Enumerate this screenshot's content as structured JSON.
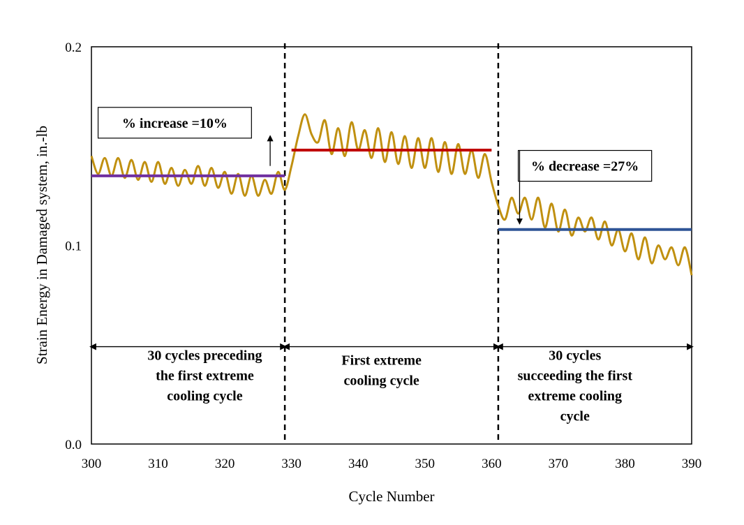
{
  "chart_data": {
    "type": "line",
    "title": "",
    "xlabel": "Cycle Number",
    "ylabel": "Strain Energy in Damaged system, in.-lb",
    "xlim": [
      300,
      390
    ],
    "ylim": [
      0.0,
      0.2
    ],
    "xticks": [
      300,
      310,
      320,
      330,
      340,
      350,
      360,
      370,
      380,
      390
    ],
    "yticks": [
      {
        "value": 0.0,
        "label": "0.0"
      },
      {
        "value": 0.1,
        "label": "0.1"
      },
      {
        "value": 0.2,
        "label": "0.2"
      }
    ],
    "grid": false,
    "colors": {
      "series": "#c09010",
      "mean_before": "#7030a0",
      "mean_extreme": "#c00000",
      "mean_after": "#2e5496",
      "axis": "#000000"
    },
    "series": [
      {
        "x": [
          300,
          301,
          302,
          303,
          304,
          305,
          306,
          307,
          308,
          309,
          310,
          311,
          312,
          313,
          314,
          315,
          316,
          317,
          318,
          319,
          320,
          321,
          322,
          323,
          324,
          325,
          326,
          327,
          328,
          329,
          330,
          331,
          332,
          333,
          334,
          335,
          336,
          337,
          338,
          339,
          340,
          341,
          342,
          343,
          344,
          345,
          346,
          347,
          348,
          349,
          350,
          351,
          352,
          353,
          354,
          355,
          356,
          357,
          358,
          359,
          360,
          361,
          362,
          363,
          364,
          365,
          366,
          367,
          368,
          369,
          370,
          371,
          372,
          373,
          374,
          375,
          376,
          377,
          378,
          379,
          380,
          381,
          382,
          383,
          384,
          385,
          386,
          387,
          388,
          389,
          390
        ],
        "y": [
          0.145,
          0.136,
          0.144,
          0.135,
          0.144,
          0.134,
          0.143,
          0.133,
          0.142,
          0.132,
          0.142,
          0.131,
          0.139,
          0.13,
          0.138,
          0.131,
          0.14,
          0.13,
          0.139,
          0.129,
          0.137,
          0.126,
          0.136,
          0.125,
          0.135,
          0.125,
          0.133,
          0.126,
          0.137,
          0.128,
          0.14,
          0.155,
          0.166,
          0.156,
          0.152,
          0.163,
          0.146,
          0.159,
          0.145,
          0.162,
          0.148,
          0.158,
          0.144,
          0.159,
          0.142,
          0.157,
          0.141,
          0.155,
          0.139,
          0.154,
          0.139,
          0.154,
          0.137,
          0.152,
          0.136,
          0.151,
          0.136,
          0.148,
          0.134,
          0.146,
          0.132,
          0.12,
          0.113,
          0.124,
          0.116,
          0.124,
          0.113,
          0.124,
          0.109,
          0.121,
          0.107,
          0.118,
          0.105,
          0.114,
          0.107,
          0.114,
          0.103,
          0.112,
          0.1,
          0.108,
          0.097,
          0.106,
          0.093,
          0.104,
          0.091,
          0.1,
          0.093,
          0.099,
          0.09,
          0.099,
          0.085
        ]
      }
    ],
    "mean_lines": [
      {
        "x": [
          300,
          329
        ],
        "y": 0.135
      },
      {
        "x": [
          330,
          360
        ],
        "y": 0.148
      },
      {
        "x": [
          361,
          390
        ],
        "y": 0.108
      }
    ],
    "dividers": [
      329,
      361
    ],
    "spans": [
      {
        "x": [
          300,
          329
        ],
        "y": 0.049,
        "label_lines": [
          "30 cycles preceding",
          "the first extreme",
          "cooling cycle"
        ],
        "label_x": 317,
        "label_y_top": 0.0424
      },
      {
        "x": [
          329,
          361
        ],
        "y": 0.049,
        "label_lines": [
          "First extreme",
          "cooling cycle"
        ],
        "label_x": 343.5,
        "label_y_top": 0.0399
      },
      {
        "x": [
          361,
          390
        ],
        "y": 0.049,
        "label_lines": [
          "30 cycles",
          "succeeding the first",
          "extreme cooling",
          "cycle"
        ],
        "label_x": 372.5,
        "label_y_top": 0.0424
      }
    ],
    "annotations": [
      {
        "text": "% increase =10%",
        "box_x": [
          301,
          324
        ],
        "box_y": [
          0.1695,
          0.154
        ]
      },
      {
        "text": "% decrease =27%",
        "box_x": [
          364,
          384
        ],
        "box_y": [
          0.1478,
          0.1323
        ]
      }
    ],
    "arrows": [
      {
        "x": 326.8,
        "from": 0.14,
        "to": 0.154
      },
      {
        "x": 364.2,
        "from": 0.148,
        "to": 0.112
      }
    ]
  }
}
